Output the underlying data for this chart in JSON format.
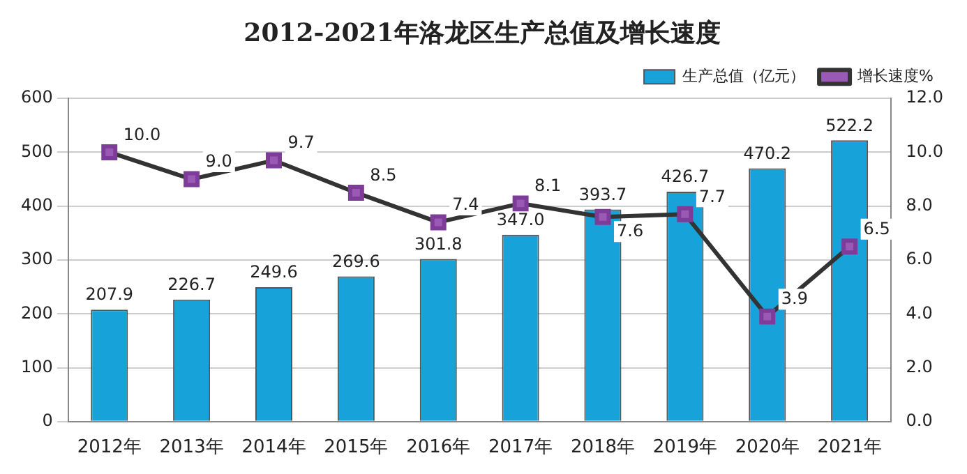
{
  "chart_data": {
    "type": "bar",
    "title": "2012-2021年洛龙区生产总值及增长速度",
    "categories": [
      "2012年",
      "2013年",
      "2014年",
      "2015年",
      "2016年",
      "2017年",
      "2018年",
      "2019年",
      "2020年",
      "2021年"
    ],
    "series": [
      {
        "name": "生产总值（亿元）",
        "color": "#17a3d9",
        "values": [
          207.9,
          226.7,
          249.6,
          269.6,
          301.8,
          347.0,
          393.7,
          426.7,
          470.2,
          522.2
        ],
        "value_labels": [
          "207.9",
          "226.7",
          "249.6",
          "269.6",
          "301.8",
          "347.0",
          "393.7",
          "426.7",
          "470.2",
          "522.2"
        ]
      },
      {
        "name": "增长速度%",
        "type": "line",
        "axis": "y2",
        "color": "#333333",
        "marker": "square",
        "values": [
          10.0,
          9.0,
          9.7,
          8.5,
          7.4,
          8.1,
          7.6,
          7.7,
          3.9,
          6.5
        ],
        "value_labels": [
          "10.0",
          "9.0",
          "9.7",
          "8.5",
          "7.4",
          "8.1",
          "7.6",
          "7.7",
          "3.9",
          "6.5"
        ]
      }
    ],
    "ylim": [
      0,
      600
    ],
    "yticks": [
      0,
      100,
      200,
      300,
      400,
      500,
      600
    ],
    "y2lim": [
      0,
      12
    ],
    "y2ticks": [
      {
        "value": 0,
        "label": "0.0"
      },
      {
        "value": 2,
        "label": "2.0"
      },
      {
        "value": 4,
        "label": "4.0"
      },
      {
        "value": 6,
        "label": "6.0"
      },
      {
        "value": 8,
        "label": "8.0"
      },
      {
        "value": 10,
        "label": "10.0"
      },
      {
        "value": 12,
        "label": "12.0"
      }
    ],
    "grid": "y",
    "legend": "top right"
  }
}
